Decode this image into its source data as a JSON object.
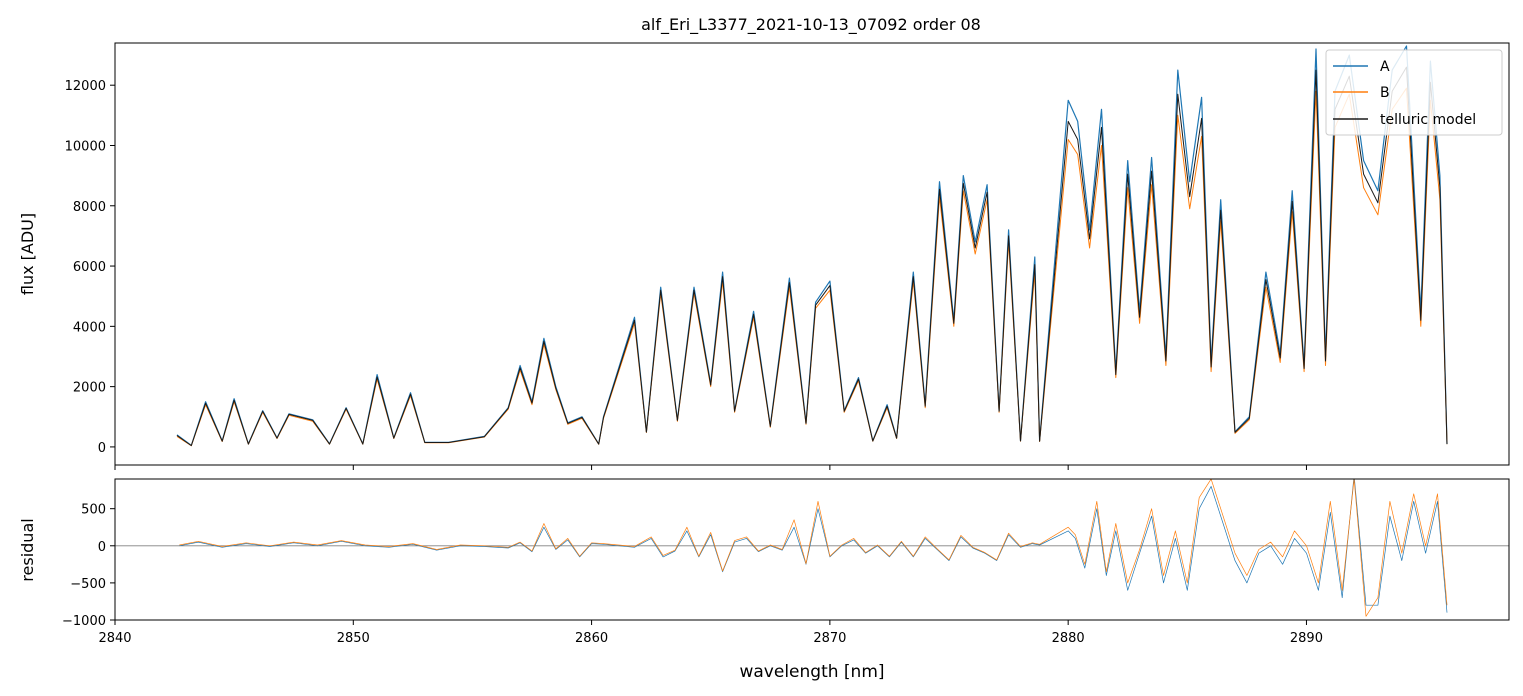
{
  "figure": {
    "title": "alf_Eri_L3377_2021-10-13_07092  order 08"
  },
  "colors": {
    "A": "#1f77b4",
    "B": "#ff7f0e",
    "telluric": "#1a1a1a",
    "zero_line": "#808080"
  },
  "chart_data": [
    {
      "type": "line",
      "panel": "top",
      "title": "alf_Eri_L3377_2021-10-13_07092  order 08",
      "xlabel": "",
      "ylabel": "flux [ADU]",
      "xlim": [
        2840,
        2898.5
      ],
      "ylim": [
        -600,
        13400
      ],
      "xticks": [
        2840,
        2850,
        2860,
        2870,
        2880,
        2890
      ],
      "yticks": [
        0,
        2000,
        4000,
        6000,
        8000,
        10000,
        12000
      ],
      "ytick_labels": [
        "0",
        "2000",
        "4000",
        "6000",
        "8000",
        "10000",
        "12000"
      ],
      "legend": {
        "position": "top-right",
        "entries": [
          "A",
          "B",
          "telluric model"
        ]
      },
      "series": [
        {
          "name": "A",
          "color_key": "A",
          "x": [
            2842.6,
            2843.2,
            2843.8,
            2844.5,
            2845.0,
            2845.6,
            2846.2,
            2846.8,
            2847.3,
            2848.3,
            2849.0,
            2849.7,
            2850.4,
            2851.0,
            2851.7,
            2852.4,
            2853.0,
            2854.0,
            2855.5,
            2856.5,
            2857.0,
            2857.5,
            2858.0,
            2858.5,
            2859.0,
            2859.6,
            2860.3,
            2860.5,
            2861.8,
            2862.3,
            2862.9,
            2863.6,
            2864.3,
            2865.0,
            2865.5,
            2866.0,
            2866.8,
            2867.5,
            2868.3,
            2869.0,
            2869.4,
            2870.0,
            2870.6,
            2871.2,
            2871.8,
            2872.4,
            2872.8,
            2873.5,
            2874.0,
            2874.6,
            2875.2,
            2875.6,
            2876.1,
            2876.6,
            2877.1,
            2877.5,
            2878.0,
            2878.6,
            2878.8,
            2880.0,
            2880.4,
            2880.9,
            2881.4,
            2882.0,
            2882.5,
            2883.0,
            2883.5,
            2884.1,
            2884.6,
            2885.1,
            2885.6,
            2886.0,
            2886.4,
            2887.0,
            2887.6,
            2888.3,
            2888.9,
            2889.4,
            2889.9,
            2890.4,
            2890.8,
            2891.2,
            2891.8,
            2892.4,
            2893.0,
            2893.6,
            2894.2,
            2894.8,
            2895.2,
            2895.6,
            2895.9
          ],
          "y": [
            400,
            50,
            1500,
            200,
            1600,
            100,
            1200,
            300,
            1100,
            900,
            100,
            1300,
            100,
            2400,
            300,
            1800,
            150,
            150,
            350,
            1300,
            2700,
            1500,
            3600,
            2000,
            800,
            1000,
            100,
            1000,
            4300,
            500,
            5300,
            900,
            5300,
            2100,
            5800,
            1200,
            4500,
            700,
            5600,
            800,
            4800,
            5500,
            1200,
            2300,
            200,
            1400,
            300,
            5800,
            1400,
            8800,
            4200,
            9000,
            6800,
            8700,
            1200,
            7200,
            200,
            6300,
            200,
            11500,
            10800,
            7200,
            11200,
            2500,
            9500,
            4500,
            9600,
            3000,
            12500,
            8800,
            11600,
            2800,
            8200,
            500,
            1000,
            5800,
            3100,
            8500,
            2700,
            13200,
            3000,
            11800,
            13000,
            9500,
            8500,
            12500,
            13300,
            4500,
            12800,
            9000,
            100
          ]
        },
        {
          "name": "B",
          "color_key": "B",
          "x": [
            2842.6,
            2843.2,
            2843.8,
            2844.5,
            2845.0,
            2845.6,
            2846.2,
            2846.8,
            2847.3,
            2848.3,
            2849.0,
            2849.7,
            2850.4,
            2851.0,
            2851.7,
            2852.4,
            2853.0,
            2854.0,
            2855.5,
            2856.5,
            2857.0,
            2857.5,
            2858.0,
            2858.5,
            2859.0,
            2859.6,
            2860.3,
            2860.5,
            2861.8,
            2862.3,
            2862.9,
            2863.6,
            2864.3,
            2865.0,
            2865.5,
            2866.0,
            2866.8,
            2867.5,
            2868.3,
            2869.0,
            2869.4,
            2870.0,
            2870.6,
            2871.2,
            2871.8,
            2872.4,
            2872.8,
            2873.5,
            2874.0,
            2874.6,
            2875.2,
            2875.6,
            2876.1,
            2876.6,
            2877.1,
            2877.5,
            2878.0,
            2878.6,
            2878.8,
            2880.0,
            2880.4,
            2880.9,
            2881.4,
            2882.0,
            2882.5,
            2883.0,
            2883.5,
            2884.1,
            2884.6,
            2885.1,
            2885.6,
            2886.0,
            2886.4,
            2887.0,
            2887.6,
            2888.3,
            2888.9,
            2889.4,
            2889.9,
            2890.4,
            2890.8,
            2891.2,
            2891.8,
            2892.4,
            2893.0,
            2893.6,
            2894.2,
            2894.8,
            2895.2,
            2895.6,
            2895.9
          ],
          "y": [
            350,
            40,
            1400,
            180,
            1500,
            90,
            1150,
            280,
            1050,
            850,
            90,
            1250,
            90,
            2250,
            280,
            1700,
            140,
            140,
            330,
            1250,
            2550,
            1400,
            3400,
            1900,
            750,
            950,
            90,
            950,
            4100,
            480,
            5100,
            850,
            5100,
            2000,
            5500,
            1150,
            4300,
            650,
            5300,
            750,
            4600,
            5200,
            1150,
            2200,
            190,
            1300,
            280,
            5500,
            1300,
            8300,
            4000,
            8500,
            6400,
            8200,
            1150,
            6800,
            190,
            5800,
            180,
            10200,
            9700,
            6600,
            10000,
            2300,
            8600,
            4100,
            8700,
            2700,
            11000,
            7900,
            10300,
            2500,
            7500,
            450,
            900,
            5300,
            2800,
            7800,
            2500,
            11800,
            2700,
            10600,
            11700,
            8600,
            7700,
            11200,
            11900,
            4000,
            11500,
            8200,
            90
          ]
        },
        {
          "name": "telluric model",
          "color_key": "telluric",
          "x": [
            2842.6,
            2843.2,
            2843.8,
            2844.5,
            2845.0,
            2845.6,
            2846.2,
            2846.8,
            2847.3,
            2848.3,
            2849.0,
            2849.7,
            2850.4,
            2851.0,
            2851.7,
            2852.4,
            2853.0,
            2854.0,
            2855.5,
            2856.5,
            2857.0,
            2857.5,
            2858.0,
            2858.5,
            2859.0,
            2859.6,
            2860.3,
            2860.5,
            2861.8,
            2862.3,
            2862.9,
            2863.6,
            2864.3,
            2865.0,
            2865.5,
            2866.0,
            2866.8,
            2867.5,
            2868.3,
            2869.0,
            2869.4,
            2870.0,
            2870.6,
            2871.2,
            2871.8,
            2872.4,
            2872.8,
            2873.5,
            2874.0,
            2874.6,
            2875.2,
            2875.6,
            2876.1,
            2876.6,
            2877.1,
            2877.5,
            2878.0,
            2878.6,
            2878.8,
            2880.0,
            2880.4,
            2880.9,
            2881.4,
            2882.0,
            2882.5,
            2883.0,
            2883.5,
            2884.1,
            2884.6,
            2885.1,
            2885.6,
            2886.0,
            2886.4,
            2887.0,
            2887.6,
            2888.3,
            2888.9,
            2889.4,
            2889.9,
            2890.4,
            2890.8,
            2891.2,
            2891.8,
            2892.4,
            2893.0,
            2893.6,
            2894.2,
            2894.8,
            2895.2,
            2895.6,
            2895.9
          ],
          "y": [
            380,
            45,
            1450,
            190,
            1550,
            95,
            1180,
            290,
            1080,
            880,
            95,
            1280,
            95,
            2320,
            290,
            1750,
            145,
            145,
            340,
            1280,
            2620,
            1450,
            3500,
            1950,
            780,
            980,
            95,
            980,
            4200,
            490,
            5200,
            880,
            5200,
            2050,
            5650,
            1180,
            4400,
            680,
            5450,
            780,
            4700,
            5350,
            1180,
            2250,
            195,
            1350,
            290,
            5650,
            1350,
            8550,
            4100,
            8750,
            6600,
            8450,
            1180,
            7000,
            195,
            6050,
            190,
            10800,
            10200,
            6900,
            10600,
            2400,
            9050,
            4300,
            9150,
            2850,
            11700,
            8300,
            10900,
            2650,
            7850,
            480,
            950,
            5550,
            2950,
            8150,
            2600,
            12500,
            2850,
            11200,
            12300,
            9050,
            8100,
            11800,
            12600,
            4200,
            12100,
            8600,
            95
          ]
        }
      ]
    },
    {
      "type": "line",
      "panel": "bottom",
      "xlabel": "wavelength [nm]",
      "ylabel": "residual",
      "xlim": [
        2840,
        2898.5
      ],
      "ylim": [
        -1000,
        900
      ],
      "xticks": [
        2840,
        2850,
        2860,
        2870,
        2880,
        2890
      ],
      "xtick_labels": [
        "2840",
        "2850",
        "2860",
        "2870",
        "2880",
        "2890"
      ],
      "yticks": [
        -1000,
        -500,
        0,
        500
      ],
      "ytick_labels": [
        "−1000",
        "−500",
        "0",
        "500"
      ],
      "hline": 0,
      "series": [
        {
          "name": "A",
          "color_key": "A",
          "x": [
            2842.7,
            2843.5,
            2844.5,
            2845.5,
            2846.5,
            2847.5,
            2848.5,
            2849.5,
            2850.5,
            2851.5,
            2852.5,
            2853.5,
            2854.5,
            2855.5,
            2856.5,
            2857.0,
            2857.5,
            2858.0,
            2858.5,
            2859.0,
            2859.5,
            2860.0,
            2860.5,
            2861.8,
            2862.5,
            2863.0,
            2863.5,
            2864.0,
            2864.5,
            2865.0,
            2865.5,
            2866.0,
            2866.5,
            2867.0,
            2867.5,
            2868.0,
            2868.5,
            2869.0,
            2869.5,
            2870.0,
            2870.5,
            2871.0,
            2871.5,
            2872.0,
            2872.5,
            2873.0,
            2873.5,
            2874.0,
            2874.5,
            2875.0,
            2875.5,
            2876.0,
            2876.5,
            2877.0,
            2877.5,
            2878.0,
            2878.5,
            2878.8,
            2880.0,
            2880.3,
            2880.7,
            2881.2,
            2881.6,
            2882.0,
            2882.5,
            2883.0,
            2883.5,
            2884.0,
            2884.5,
            2885.0,
            2885.5,
            2886.0,
            2886.5,
            2887.0,
            2887.5,
            2888.0,
            2888.5,
            2889.0,
            2889.5,
            2890.0,
            2890.5,
            2891.0,
            2891.5,
            2892.0,
            2892.5,
            2893.0,
            2893.5,
            2894.0,
            2894.5,
            2895.0,
            2895.5,
            2895.9
          ],
          "y": [
            0,
            50,
            -20,
            30,
            -10,
            40,
            0,
            60,
            0,
            -20,
            20,
            -60,
            0,
            -10,
            -30,
            40,
            -80,
            250,
            -50,
            80,
            -150,
            30,
            20,
            -20,
            100,
            -150,
            -70,
            200,
            -150,
            150,
            -350,
            50,
            100,
            -80,
            0,
            -60,
            250,
            -250,
            500,
            -150,
            0,
            80,
            -100,
            0,
            -150,
            50,
            -150,
            100,
            -50,
            -200,
            120,
            -30,
            -100,
            -200,
            150,
            -20,
            30,
            10,
            200,
            100,
            -300,
            500,
            -400,
            200,
            -600,
            -100,
            400,
            -500,
            100,
            -600,
            500,
            800,
            300,
            -200,
            -500,
            -100,
            0,
            -250,
            100,
            -100,
            -600,
            450,
            -700,
            950,
            -800,
            -800,
            400,
            -200,
            600,
            -100,
            600,
            -900
          ]
        },
        {
          "name": "B",
          "color_key": "B",
          "x": [
            2842.7,
            2843.5,
            2844.5,
            2845.5,
            2846.5,
            2847.5,
            2848.5,
            2849.5,
            2850.5,
            2851.5,
            2852.5,
            2853.5,
            2854.5,
            2855.5,
            2856.5,
            2857.0,
            2857.5,
            2858.0,
            2858.5,
            2859.0,
            2859.5,
            2860.0,
            2860.5,
            2861.8,
            2862.5,
            2863.0,
            2863.5,
            2864.0,
            2864.5,
            2865.0,
            2865.5,
            2866.0,
            2866.5,
            2867.0,
            2867.5,
            2868.0,
            2868.5,
            2869.0,
            2869.5,
            2870.0,
            2870.5,
            2871.0,
            2871.5,
            2872.0,
            2872.5,
            2873.0,
            2873.5,
            2874.0,
            2874.5,
            2875.0,
            2875.5,
            2876.0,
            2876.5,
            2877.0,
            2877.5,
            2878.0,
            2878.5,
            2878.8,
            2880.0,
            2880.3,
            2880.7,
            2881.2,
            2881.6,
            2882.0,
            2882.5,
            2883.0,
            2883.5,
            2884.0,
            2884.5,
            2885.0,
            2885.5,
            2886.0,
            2886.5,
            2887.0,
            2887.5,
            2888.0,
            2888.5,
            2889.0,
            2889.5,
            2890.0,
            2890.5,
            2891.0,
            2891.5,
            2892.0,
            2892.5,
            2893.0,
            2893.5,
            2894.0,
            2894.5,
            2895.0,
            2895.5,
            2895.9
          ],
          "y": [
            10,
            60,
            -10,
            40,
            0,
            50,
            10,
            70,
            10,
            -10,
            30,
            -50,
            10,
            0,
            -20,
            50,
            -70,
            300,
            -40,
            100,
            -140,
            40,
            30,
            -10,
            120,
            -130,
            -60,
            250,
            -140,
            180,
            -340,
            70,
            120,
            -70,
            10,
            -50,
            350,
            -240,
            600,
            -140,
            10,
            100,
            -90,
            10,
            -140,
            60,
            -140,
            120,
            -40,
            -190,
            140,
            -20,
            -90,
            -190,
            170,
            -10,
            40,
            20,
            250,
            150,
            -250,
            600,
            -350,
            300,
            -500,
            -50,
            500,
            -400,
            200,
            -500,
            650,
            900,
            400,
            -100,
            -400,
            -50,
            50,
            -150,
            200,
            0,
            -500,
            600,
            -600,
            900,
            -950,
            -700,
            600,
            -100,
            700,
            0,
            700,
            -800
          ]
        }
      ]
    }
  ]
}
